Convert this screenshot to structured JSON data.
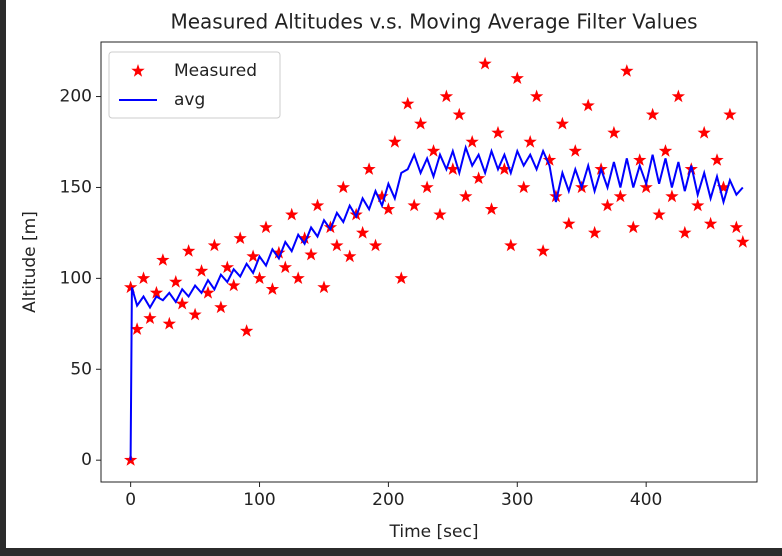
{
  "chart_data": {
    "type": "line-scatter",
    "title": "Measured Altitudes v.s. Moving Average Filter Values",
    "x_label": "Time [sec]",
    "y_label": "Altitude [m]",
    "xlim": [
      -23,
      486
    ],
    "ylim": [
      -12,
      230
    ],
    "xticks": [
      0,
      100,
      200,
      300,
      400
    ],
    "yticks": [
      0,
      50,
      100,
      150,
      200
    ],
    "legend": "upper left",
    "series": [
      {
        "name": "Measured",
        "color": "#ff0000",
        "marker": "star",
        "x": [
          0,
          0,
          5,
          10,
          15,
          20,
          25,
          30,
          35,
          40,
          45,
          50,
          55,
          60,
          65,
          70,
          75,
          80,
          85,
          90,
          95,
          100,
          105,
          110,
          115,
          120,
          125,
          130,
          135,
          140,
          145,
          150,
          155,
          160,
          165,
          170,
          175,
          180,
          185,
          190,
          195,
          200,
          205,
          210,
          215,
          220,
          225,
          230,
          235,
          240,
          245,
          250,
          255,
          260,
          265,
          270,
          275,
          280,
          285,
          290,
          295,
          300,
          305,
          310,
          315,
          320,
          325,
          330,
          335,
          340,
          345,
          350,
          355,
          360,
          365,
          370,
          375,
          380,
          385,
          390,
          395,
          400,
          405,
          410,
          415,
          420,
          425,
          430,
          435,
          440,
          445,
          450,
          455,
          460,
          465,
          470,
          475
        ],
        "values": [
          0,
          95,
          72,
          100,
          78,
          92,
          110,
          75,
          98,
          86,
          115,
          80,
          104,
          92,
          118,
          84,
          106,
          96,
          122,
          71,
          112,
          100,
          128,
          94,
          114,
          106,
          135,
          100,
          122,
          113,
          140,
          95,
          128,
          118,
          150,
          112,
          135,
          125,
          160,
          118,
          145,
          138,
          175,
          100,
          196,
          140,
          185,
          150,
          170,
          135,
          200,
          160,
          190,
          145,
          175,
          155,
          218,
          138,
          180,
          160,
          118,
          210,
          150,
          175,
          200,
          115,
          165,
          145,
          185,
          130,
          170,
          150,
          195,
          125,
          160,
          140,
          180,
          145,
          214,
          128,
          165,
          150,
          190,
          135,
          170,
          145,
          200,
          125,
          160,
          140,
          180,
          130,
          165,
          150,
          190,
          128,
          120
        ]
      },
      {
        "name": "avg",
        "color": "#0000ff",
        "marker": "line",
        "x": [
          0,
          1,
          5,
          10,
          15,
          20,
          25,
          30,
          35,
          40,
          45,
          50,
          55,
          60,
          65,
          70,
          75,
          80,
          85,
          90,
          95,
          100,
          105,
          110,
          115,
          120,
          125,
          130,
          135,
          140,
          145,
          150,
          155,
          160,
          165,
          170,
          175,
          180,
          185,
          190,
          195,
          200,
          205,
          210,
          215,
          220,
          225,
          230,
          235,
          240,
          245,
          250,
          255,
          260,
          265,
          270,
          275,
          280,
          285,
          290,
          295,
          300,
          305,
          310,
          315,
          320,
          325,
          330,
          335,
          340,
          345,
          350,
          355,
          360,
          365,
          370,
          375,
          380,
          385,
          390,
          395,
          400,
          405,
          410,
          415,
          420,
          425,
          430,
          435,
          440,
          445,
          450,
          455,
          460,
          465,
          470,
          475
        ],
        "values": [
          0,
          95,
          85,
          90,
          84,
          90,
          88,
          92,
          87,
          94,
          90,
          96,
          92,
          99,
          94,
          102,
          98,
          105,
          101,
          108,
          103,
          112,
          107,
          116,
          111,
          120,
          115,
          124,
          119,
          128,
          123,
          132,
          127,
          136,
          131,
          140,
          134,
          144,
          138,
          148,
          140,
          152,
          144,
          158,
          160,
          168,
          158,
          166,
          156,
          168,
          160,
          170,
          158,
          172,
          162,
          168,
          158,
          170,
          160,
          168,
          158,
          170,
          162,
          168,
          160,
          170,
          162,
          142,
          158,
          148,
          160,
          150,
          162,
          148,
          160,
          150,
          164,
          150,
          166,
          150,
          162,
          152,
          168,
          152,
          166,
          150,
          164,
          148,
          162,
          146,
          158,
          144,
          156,
          142,
          154,
          146,
          150
        ]
      }
    ]
  }
}
